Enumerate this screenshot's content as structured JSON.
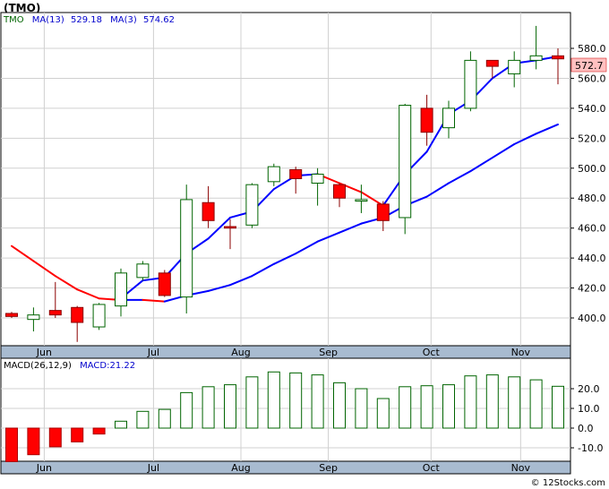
{
  "title": "(TMO)",
  "watermark": "© 12Stocks.com",
  "legend": {
    "ticker": "TMO",
    "ma13_label": "MA(13)",
    "ma13_value": "529.18",
    "ma3_label": "MA(3)",
    "ma3_value": "574.62"
  },
  "last_price_tag": "572.7",
  "macd_legend": {
    "label": "MACD(26,12,9)",
    "value_label": "MACD:21.22"
  },
  "colors": {
    "up_candle": "#ffffff",
    "up_candle_border": "#006400",
    "down_candle": "#ff0000",
    "down_candle_border": "#8b0000",
    "ma_rising": "#0000ff",
    "ma_falling": "#ff0000",
    "macd_positive": "#006400",
    "macd_negative": "#ff0000",
    "date_band": "#a8bbd0",
    "grid": "#d0d0d0",
    "price_tag_bg": "#ffc0c0",
    "ticker_color": "#006400"
  },
  "chart_data": [
    {
      "type": "candlestick",
      "title": "(TMO)",
      "x_tick_labels": [
        "Jun",
        "Jul",
        "Aug",
        "Sep",
        "Oct",
        "Nov"
      ],
      "y_tick_labels": [
        "400.0",
        "420.0",
        "440.0",
        "460.0",
        "480.0",
        "500.0",
        "520.0",
        "540.0",
        "560.0",
        "580.0"
      ],
      "ylim": [
        383,
        595
      ],
      "grid": true,
      "candles": [
        {
          "week": "2021-05-28",
          "open": 403,
          "high": 404,
          "low": 400,
          "close": 401
        },
        {
          "week": "2021-06-04",
          "open": 399,
          "high": 407,
          "low": 391,
          "close": 402
        },
        {
          "week": "2021-06-11",
          "open": 405,
          "high": 424,
          "low": 400,
          "close": 402
        },
        {
          "week": "2021-06-18",
          "open": 407,
          "high": 408,
          "low": 384,
          "close": 397
        },
        {
          "week": "2021-06-25",
          "open": 394,
          "high": 410,
          "low": 392,
          "close": 409
        },
        {
          "week": "2021-07-02",
          "open": 408,
          "high": 433,
          "low": 401,
          "close": 430
        },
        {
          "week": "2021-07-09",
          "open": 427,
          "high": 438,
          "low": 425,
          "close": 436
        },
        {
          "week": "2021-07-16",
          "open": 430,
          "high": 432,
          "low": 414,
          "close": 415
        },
        {
          "week": "2021-07-23",
          "open": 414,
          "high": 489,
          "low": 403,
          "close": 479
        },
        {
          "week": "2021-07-30",
          "open": 477,
          "high": 488,
          "low": 460,
          "close": 465
        },
        {
          "week": "2021-08-06",
          "open": 461,
          "high": 466,
          "low": 446,
          "close": 460
        },
        {
          "week": "2021-08-13",
          "open": 462,
          "high": 490,
          "low": 460,
          "close": 489
        },
        {
          "week": "2021-08-20",
          "open": 491,
          "high": 503,
          "low": 488,
          "close": 501
        },
        {
          "week": "2021-08-27",
          "open": 499,
          "high": 501,
          "low": 483,
          "close": 493
        },
        {
          "week": "2021-09-03",
          "open": 490,
          "high": 500,
          "low": 475,
          "close": 496
        },
        {
          "week": "2021-09-10",
          "open": 489,
          "high": 490,
          "low": 474,
          "close": 480
        },
        {
          "week": "2021-09-17",
          "open": 478,
          "high": 489,
          "low": 470,
          "close": 479
        },
        {
          "week": "2021-09-24",
          "open": 476,
          "high": 478,
          "low": 458,
          "close": 465
        },
        {
          "week": "2021-10-01",
          "open": 467,
          "high": 543,
          "low": 456,
          "close": 542
        },
        {
          "week": "2021-10-08",
          "open": 540,
          "high": 549,
          "low": 515,
          "close": 524
        },
        {
          "week": "2021-10-15",
          "open": 527,
          "high": 545,
          "low": 520,
          "close": 540
        },
        {
          "week": "2021-10-22",
          "open": 540,
          "high": 578,
          "low": 538,
          "close": 572
        },
        {
          "week": "2021-10-29",
          "open": 572,
          "high": 572,
          "low": 560,
          "close": 568
        },
        {
          "week": "2021-11-05",
          "open": 563,
          "high": 578,
          "low": 554,
          "close": 572
        },
        {
          "week": "2021-11-12",
          "open": 572,
          "high": 595,
          "low": 566,
          "close": 575
        },
        {
          "week": "2021-11-19",
          "open": 575,
          "high": 580,
          "low": 556,
          "close": 573
        }
      ],
      "series": [
        {
          "name": "MA(3)",
          "values": [
            null,
            null,
            null,
            null,
            null,
            413,
            425,
            427,
            443,
            453,
            467,
            471,
            486,
            495,
            496,
            490,
            484,
            475,
            496,
            511,
            536,
            545,
            560,
            570,
            572,
            574.62
          ]
        },
        {
          "name": "MA(13)",
          "values": [
            448,
            438,
            428,
            419,
            413,
            412,
            412,
            411,
            415,
            418,
            422,
            428,
            436,
            443,
            451,
            457,
            463,
            467,
            475,
            481,
            490,
            498,
            507,
            516,
            523,
            529.18
          ]
        }
      ]
    },
    {
      "type": "bar",
      "title": "MACD(26,12,9)",
      "x_tick_labels": [
        "Jun",
        "Jul",
        "Aug",
        "Sep",
        "Oct",
        "Nov"
      ],
      "y_tick_labels": [
        "-10.0",
        "0.0",
        "10.0",
        "20.0"
      ],
      "ylim": [
        -17,
        29
      ],
      "series": [
        {
          "name": "MACD",
          "values": [
            -17,
            -13.5,
            -9.5,
            -7,
            -3,
            3.5,
            8.5,
            9.5,
            18,
            21,
            22,
            26,
            28.5,
            28,
            27,
            23,
            20,
            15,
            21,
            21.5,
            22,
            26.5,
            27,
            26,
            24.5,
            21.22
          ]
        }
      ]
    }
  ]
}
